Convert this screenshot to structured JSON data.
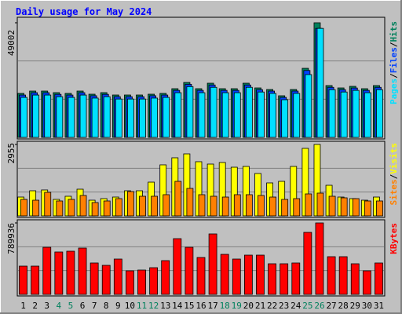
{
  "chart_data": [
    {
      "type": "bar",
      "title": "Daily usage for May 2024",
      "categories": [
        "1",
        "2",
        "3",
        "4",
        "5",
        "6",
        "7",
        "8",
        "9",
        "10",
        "11",
        "12",
        "13",
        "14",
        "15",
        "16",
        "17",
        "18",
        "19",
        "20",
        "21",
        "22",
        "23",
        "24",
        "25",
        "26",
        "27",
        "28",
        "29",
        "30",
        "31"
      ],
      "category_colors": [
        "#000000",
        "#000000",
        "#000000",
        "#00805c",
        "#00805c",
        "#000000",
        "#000000",
        "#000000",
        "#000000",
        "#000000",
        "#00805c",
        "#00805c",
        "#000000",
        "#000000",
        "#000000",
        "#000000",
        "#000000",
        "#00805c",
        "#00805c",
        "#000000",
        "#000000",
        "#000000",
        "#000000",
        "#000000",
        "#00805c",
        "#00805c",
        "#000000",
        "#000000",
        "#000000",
        "#000000",
        "#000000"
      ],
      "legend_separator": "/",
      "series": [
        {
          "name": "Hits",
          "color": "#00805c",
          "values": [
            18800,
            19800,
            19800,
            19130,
            18800,
            19800,
            18460,
            19130,
            18120,
            18120,
            18120,
            18460,
            18800,
            20810,
            23490,
            20810,
            23160,
            20810,
            20810,
            23160,
            21140,
            20470,
            17790,
            20470,
            29530,
            49002,
            22150,
            21140,
            21820,
            20810,
            22150
          ]
        },
        {
          "name": "Files",
          "color": "#0040ff",
          "values": [
            18100,
            19100,
            19100,
            18400,
            18100,
            19100,
            17800,
            18400,
            17400,
            17400,
            17400,
            17800,
            18100,
            20100,
            22700,
            20100,
            22400,
            20100,
            20100,
            22400,
            20400,
            19800,
            17100,
            19800,
            28600,
            46600,
            21400,
            20400,
            21100,
            20100,
            21400
          ]
        },
        {
          "name": "Pages",
          "color": "#00e0ff",
          "values": [
            17100,
            18100,
            18100,
            17400,
            17100,
            18100,
            16800,
            17400,
            16400,
            16400,
            16400,
            16800,
            17100,
            19100,
            21700,
            19100,
            21400,
            19100,
            19100,
            21400,
            19400,
            18800,
            16100,
            18800,
            26850,
            46600,
            20400,
            19400,
            20100,
            19100,
            20400
          ]
        }
      ],
      "ylim": [
        0,
        49002
      ],
      "yticks": [
        49002
      ]
    },
    {
      "type": "bar",
      "legend_separator": "/",
      "series": [
        {
          "name": "Visits",
          "color": "#ffff00",
          "values": [
            779,
            1039,
            1072,
            682,
            812,
            1104,
            649,
            714,
            779,
            1039,
            1039,
            1396,
            2111,
            2403,
            2565,
            2241,
            2143,
            2208,
            2013,
            2046,
            1753,
            1364,
            1429,
            2046,
            2793,
            2955,
            1266,
            779,
            714,
            649,
            779
          ]
        },
        {
          "name": "Sites",
          "color": "#ff8000",
          "values": [
            682,
            649,
            974,
            617,
            682,
            844,
            552,
            617,
            714,
            1007,
            812,
            812,
            877,
            1429,
            1137,
            877,
            812,
            779,
            877,
            877,
            844,
            779,
            682,
            714,
            909,
            942,
            812,
            747,
            714,
            617,
            617
          ]
        }
      ],
      "ylim": [
        0,
        2955
      ],
      "yticks": [
        2955
      ]
    },
    {
      "type": "bar",
      "series": [
        {
          "name": "KBytes",
          "color": "#ff0000",
          "values": [
            312500,
            312500,
            520800,
            468700,
            477400,
            512200,
            347200,
            321200,
            390600,
            260400,
            269100,
            295100,
            373300,
            616300,
            520800,
            408000,
            668400,
            442700,
            390600,
            434000,
            434000,
            338500,
            338500,
            347200,
            685800,
            789936,
            416700,
            416700,
            338500,
            260400,
            347200
          ]
        }
      ],
      "ylim": [
        0,
        789936
      ],
      "yticks": [
        789936
      ]
    }
  ]
}
